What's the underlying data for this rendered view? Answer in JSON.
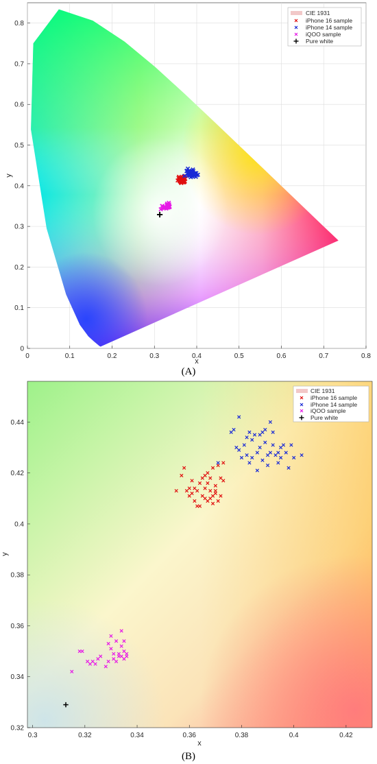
{
  "colors": {
    "iphone16": "#e01010",
    "iphone14": "#1a2bd6",
    "iqoo": "#e619e6",
    "white_point": "#000000",
    "cie": "#f2c8c8"
  },
  "chart_data": [
    {
      "panel_label": "(A)",
      "type": "scatter",
      "xlabel": "x",
      "ylabel": "y",
      "xlim": [
        0,
        0.8
      ],
      "ylim": [
        0,
        0.85
      ],
      "x_ticks": [
        "0",
        "0.1",
        "0.2",
        "0.3",
        "0.4",
        "0.5",
        "0.6",
        "0.7",
        "0.8"
      ],
      "y_ticks": [
        "0",
        "0.1",
        "0.2",
        "0.3",
        "0.4",
        "0.5",
        "0.6",
        "0.7",
        "0.8"
      ],
      "grid": true,
      "legend_position": "top-right",
      "legend": [
        "CIE 1931",
        "iPhone 16 sample",
        "iPhone 14 sample",
        "iQOO sample",
        "Pure white"
      ]
    },
    {
      "panel_label": "(B)",
      "type": "scatter",
      "xlabel": "x",
      "ylabel": "y",
      "xlim": [
        0.298,
        0.43
      ],
      "ylim": [
        0.32,
        0.456
      ],
      "x_ticks": [
        "0.3",
        "0.32",
        "0.34",
        "0.36",
        "0.38",
        "0.4",
        "0.42"
      ],
      "y_ticks": [
        "0.32",
        "0.34",
        "0.36",
        "0.38",
        "0.4",
        "0.42",
        "0.44"
      ],
      "grid": false,
      "legend_position": "top-right",
      "legend": [
        "CIE 1931",
        "iPhone 16 sample",
        "iPhone 14 sample",
        "iQOO sample",
        "Pure white"
      ]
    }
  ],
  "series": [
    {
      "name": "iPhone 16 sample",
      "color_key": "iphone16",
      "x": [
        0.355,
        0.357,
        0.358,
        0.359,
        0.36,
        0.36,
        0.361,
        0.361,
        0.362,
        0.362,
        0.363,
        0.363,
        0.364,
        0.364,
        0.365,
        0.365,
        0.366,
        0.366,
        0.366,
        0.367,
        0.367,
        0.367,
        0.368,
        0.368,
        0.368,
        0.369,
        0.369,
        0.369,
        0.37,
        0.37,
        0.37,
        0.371,
        0.371,
        0.372,
        0.372,
        0.373,
        0.373
      ],
      "y": [
        0.413,
        0.419,
        0.422,
        0.413,
        0.414,
        0.411,
        0.417,
        0.412,
        0.414,
        0.409,
        0.413,
        0.407,
        0.416,
        0.407,
        0.418,
        0.411,
        0.419,
        0.414,
        0.41,
        0.42,
        0.416,
        0.409,
        0.418,
        0.413,
        0.41,
        0.422,
        0.411,
        0.408,
        0.415,
        0.413,
        0.412,
        0.423,
        0.409,
        0.418,
        0.411,
        0.424,
        0.417
      ]
    },
    {
      "name": "iPhone 14 sample",
      "color_key": "iphone14",
      "x": [
        0.371,
        0.376,
        0.377,
        0.378,
        0.379,
        0.379,
        0.38,
        0.381,
        0.382,
        0.382,
        0.383,
        0.383,
        0.384,
        0.384,
        0.385,
        0.386,
        0.386,
        0.387,
        0.387,
        0.388,
        0.388,
        0.389,
        0.389,
        0.39,
        0.39,
        0.391,
        0.391,
        0.392,
        0.392,
        0.393,
        0.394,
        0.394,
        0.395,
        0.395,
        0.396,
        0.397,
        0.398,
        0.399,
        0.4,
        0.403
      ],
      "y": [
        0.424,
        0.436,
        0.437,
        0.43,
        0.442,
        0.429,
        0.426,
        0.431,
        0.427,
        0.434,
        0.424,
        0.436,
        0.433,
        0.426,
        0.435,
        0.421,
        0.428,
        0.435,
        0.43,
        0.436,
        0.425,
        0.437,
        0.432,
        0.423,
        0.427,
        0.44,
        0.428,
        0.436,
        0.431,
        0.427,
        0.424,
        0.428,
        0.426,
        0.43,
        0.431,
        0.428,
        0.422,
        0.431,
        0.426,
        0.427
      ]
    },
    {
      "name": "iQOO sample",
      "color_key": "iqoo",
      "x": [
        0.315,
        0.318,
        0.319,
        0.321,
        0.322,
        0.323,
        0.324,
        0.325,
        0.326,
        0.328,
        0.329,
        0.329,
        0.33,
        0.33,
        0.331,
        0.331,
        0.332,
        0.332,
        0.333,
        0.333,
        0.334,
        0.334,
        0.334,
        0.335,
        0.335,
        0.335,
        0.336,
        0.336
      ],
      "y": [
        0.342,
        0.35,
        0.35,
        0.346,
        0.345,
        0.346,
        0.345,
        0.347,
        0.348,
        0.344,
        0.353,
        0.346,
        0.351,
        0.356,
        0.349,
        0.347,
        0.354,
        0.346,
        0.349,
        0.348,
        0.352,
        0.348,
        0.358,
        0.35,
        0.347,
        0.354,
        0.349,
        0.348
      ]
    },
    {
      "name": "Pure white",
      "color_key": "white_point",
      "x": [
        0.3127
      ],
      "y": [
        0.329
      ]
    }
  ]
}
